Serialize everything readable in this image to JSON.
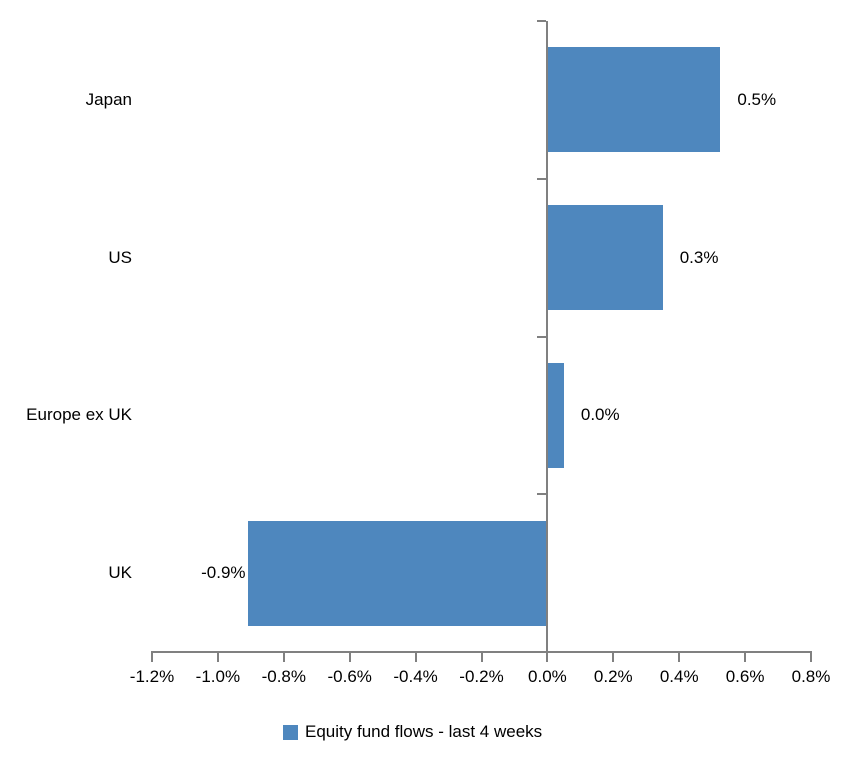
{
  "chart_data": {
    "type": "bar",
    "orientation": "horizontal",
    "title": "",
    "categories": [
      "Japan",
      "US",
      "Europe ex UK",
      "UK"
    ],
    "series": [
      {
        "name": "Equity fund flows - last 4 weeks",
        "values": [
          0.5,
          0.3,
          0.0,
          -0.9
        ],
        "data_labels": [
          "0.5%",
          "0.3%",
          "0.0%",
          "-0.9%"
        ],
        "bar_drawn_values": [
          0.525,
          0.35,
          0.05,
          -0.91
        ]
      }
    ],
    "xlabel": "",
    "ylabel": "",
    "xlim": [
      -1.2,
      0.8
    ],
    "x_tick_values": [
      -1.2,
      -1.0,
      -0.8,
      -0.6,
      -0.4,
      -0.2,
      0.0,
      0.2,
      0.4,
      0.6,
      0.8
    ],
    "x_tick_labels": [
      "-1.2%",
      "-1.0%",
      "-0.8%",
      "-0.6%",
      "-0.4%",
      "-0.2%",
      "0.0%",
      "0.2%",
      "0.4%",
      "0.6%",
      "0.8%"
    ],
    "grid": false,
    "legend_position": "bottom",
    "colors": {
      "bar": "#4E87BE",
      "axis": "#808080",
      "text": "#000000",
      "background": "#FFFFFF"
    }
  }
}
